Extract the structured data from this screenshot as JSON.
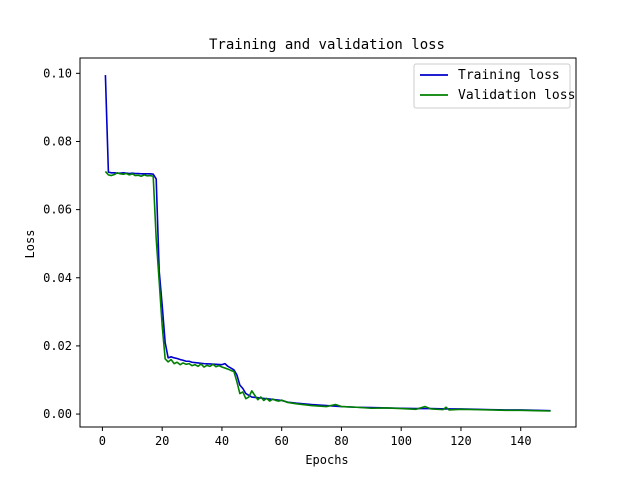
{
  "chart_data": {
    "type": "line",
    "title": "Training and validation loss",
    "xlabel": "Epochs",
    "ylabel": "Loss",
    "xlim": [
      -7.5,
      158.5
    ],
    "ylim": [
      -0.0038,
      0.1045
    ],
    "xticks": [
      0,
      20,
      40,
      60,
      80,
      100,
      120,
      140
    ],
    "xtick_labels": [
      "0",
      "20",
      "40",
      "60",
      "80",
      "100",
      "120",
      "140"
    ],
    "yticks": [
      0.0,
      0.02,
      0.04,
      0.06,
      0.08,
      0.1
    ],
    "ytick_labels": [
      "0.00",
      "0.02",
      "0.04",
      "0.06",
      "0.08",
      "0.10"
    ],
    "grid": false,
    "legend_position": "top-right",
    "series": [
      {
        "name": "Training loss",
        "color": "#0000cc",
        "x": [
          1,
          2,
          3,
          4,
          5,
          6,
          7,
          8,
          9,
          10,
          11,
          12,
          13,
          14,
          15,
          16,
          17,
          18,
          19,
          20,
          21,
          22,
          23,
          24,
          25,
          26,
          27,
          28,
          29,
          30,
          32,
          34,
          36,
          38,
          40,
          41,
          42,
          43,
          44,
          45,
          46,
          47,
          48,
          50,
          52,
          54,
          56,
          58,
          60,
          62,
          65,
          70,
          75,
          80,
          85,
          90,
          95,
          100,
          105,
          110,
          115,
          120,
          125,
          130,
          135,
          140,
          145,
          150
        ],
        "y": [
          0.0995,
          0.071,
          0.0708,
          0.0708,
          0.0707,
          0.0707,
          0.0708,
          0.0707,
          0.0706,
          0.0707,
          0.0706,
          0.0706,
          0.0705,
          0.0705,
          0.0705,
          0.0705,
          0.0704,
          0.069,
          0.042,
          0.032,
          0.021,
          0.0165,
          0.0168,
          0.0165,
          0.0163,
          0.016,
          0.0158,
          0.0155,
          0.0155,
          0.0152,
          0.015,
          0.0148,
          0.0147,
          0.0146,
          0.0145,
          0.0148,
          0.014,
          0.0135,
          0.013,
          0.0115,
          0.0085,
          0.0075,
          0.006,
          0.005,
          0.0048,
          0.0046,
          0.0044,
          0.0042,
          0.004,
          0.0035,
          0.0032,
          0.0028,
          0.0025,
          0.0022,
          0.002,
          0.0019,
          0.0018,
          0.0017,
          0.0016,
          0.0016,
          0.0015,
          0.0015,
          0.0014,
          0.0013,
          0.0012,
          0.0012,
          0.0011,
          0.001
        ]
      },
      {
        "name": "Validation loss",
        "color": "#008000",
        "x": [
          1,
          2,
          3,
          4,
          5,
          6,
          7,
          8,
          9,
          10,
          11,
          12,
          13,
          14,
          15,
          16,
          17,
          18,
          19,
          20,
          21,
          22,
          23,
          24,
          25,
          26,
          27,
          28,
          29,
          30,
          31,
          32,
          33,
          34,
          35,
          36,
          37,
          38,
          39,
          40,
          41,
          42,
          43,
          44,
          45,
          46,
          47,
          48,
          49,
          50,
          51,
          52,
          53,
          54,
          55,
          56,
          57,
          58,
          59,
          60,
          62,
          65,
          70,
          75,
          78,
          80,
          85,
          90,
          95,
          100,
          105,
          108,
          110,
          114,
          115,
          116,
          120,
          125,
          130,
          135,
          140,
          145,
          150
        ],
        "y": [
          0.0712,
          0.0702,
          0.07,
          0.0703,
          0.0708,
          0.0705,
          0.0704,
          0.0706,
          0.0702,
          0.0705,
          0.07,
          0.0701,
          0.0698,
          0.0702,
          0.0699,
          0.07,
          0.0698,
          0.0515,
          0.039,
          0.026,
          0.0162,
          0.0153,
          0.016,
          0.0148,
          0.0152,
          0.0145,
          0.015,
          0.0146,
          0.0148,
          0.0142,
          0.0145,
          0.014,
          0.0147,
          0.0138,
          0.0143,
          0.014,
          0.0146,
          0.0139,
          0.0142,
          0.0138,
          0.0135,
          0.0132,
          0.0128,
          0.0125,
          0.0095,
          0.006,
          0.0065,
          0.0045,
          0.005,
          0.0068,
          0.0055,
          0.0042,
          0.005,
          0.004,
          0.0046,
          0.0038,
          0.0044,
          0.004,
          0.0038,
          0.0041,
          0.0034,
          0.003,
          0.0025,
          0.0022,
          0.0028,
          0.0022,
          0.002,
          0.0017,
          0.0018,
          0.0016,
          0.0014,
          0.0022,
          0.0015,
          0.0013,
          0.002,
          0.0012,
          0.0014,
          0.0013,
          0.0012,
          0.0011,
          0.0011,
          0.001,
          0.0009
        ]
      }
    ]
  }
}
